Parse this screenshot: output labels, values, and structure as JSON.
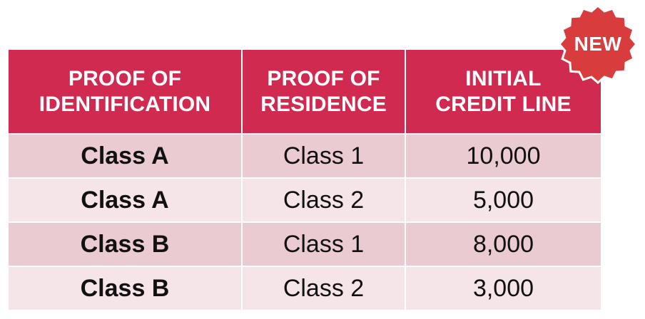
{
  "badge": {
    "label": "NEW"
  },
  "table": {
    "headers": [
      "PROOF OF\nIDENTIFICATION",
      "PROOF OF\nRESIDENCE",
      "INITIAL\nCREDIT LINE"
    ],
    "rows": [
      [
        "Class A",
        "Class 1",
        "10,000"
      ],
      [
        "Class A",
        "Class 2",
        "5,000"
      ],
      [
        "Class B",
        "Class 1",
        "8,000"
      ],
      [
        "Class B",
        "Class 2",
        "3,000"
      ]
    ]
  },
  "colors": {
    "header_bg": "#d02a50",
    "row_odd_bg": "#eacbd1",
    "row_even_bg": "#f6e5e8",
    "badge_bg": "#d93c3c"
  }
}
